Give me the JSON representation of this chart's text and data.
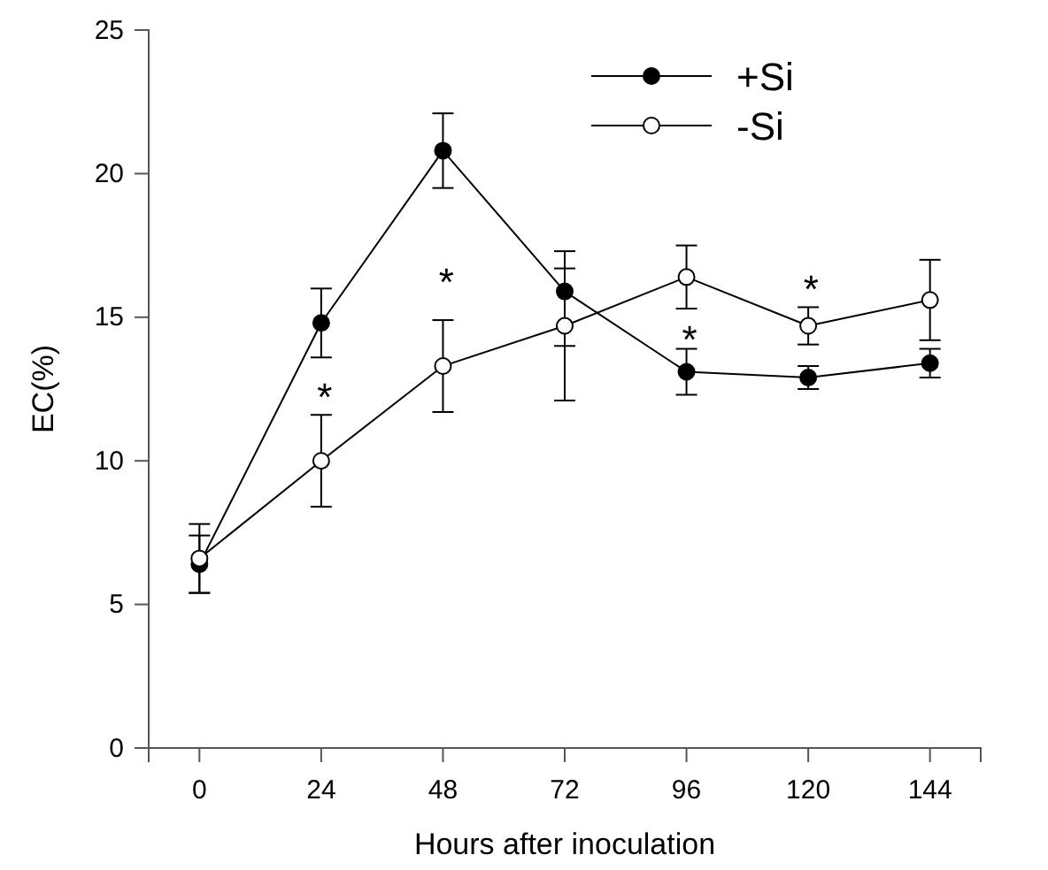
{
  "chart_data": {
    "type": "line",
    "xlabel": "Hours after inoculation",
    "ylabel": "EC(%)",
    "x": [
      0,
      24,
      48,
      72,
      96,
      120,
      144
    ],
    "xlim": [
      -10,
      154
    ],
    "xticks": [
      0,
      24,
      48,
      72,
      96,
      120,
      144
    ],
    "ylim": [
      0,
      25
    ],
    "yticks": [
      0,
      5,
      10,
      15,
      20,
      25
    ],
    "grid": false,
    "legend": "top right",
    "marker": "circle",
    "line_style": "solid",
    "series": [
      {
        "name": "+Si",
        "color": "#000000",
        "values": [
          6.4,
          14.8,
          20.8,
          15.9,
          13.1,
          12.9,
          13.4
        ],
        "errors": [
          1.0,
          1.2,
          1.3,
          [
            14.0,
            16.7
          ],
          0.8,
          0.4,
          0.5
        ]
      },
      {
        "name": "-Si",
        "color": "#ffffff",
        "values": [
          6.6,
          10.0,
          13.3,
          14.7,
          16.4,
          14.7,
          15.6
        ],
        "errors": [
          1.2,
          1.6,
          1.6,
          2.6,
          1.1,
          0.65,
          1.4
        ]
      }
    ],
    "annotations": [
      "*",
      "*",
      "*",
      "*"
    ]
  }
}
